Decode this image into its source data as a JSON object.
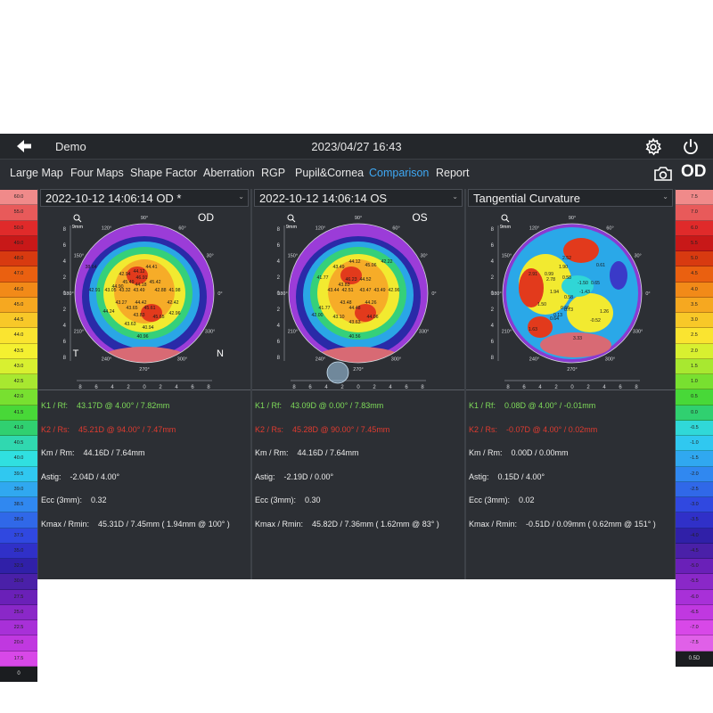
{
  "header": {
    "app_title": "Demo",
    "datetime": "2023/04/27 16:43",
    "eye": "OD"
  },
  "nav": [
    "Large Map",
    "Four Maps",
    "Shape Factor",
    "Aberration",
    "RGP",
    "Pupil&Cornea",
    "Comparison",
    "Report"
  ],
  "nav_active": "Comparison",
  "left_scale": [
    "60.0",
    "55.0",
    "50.0",
    "49.0",
    "48.0",
    "47.0",
    "46.0",
    "45.0",
    "44.5",
    "44.0",
    "43.5",
    "43.0",
    "42.5",
    "42.0",
    "41.5",
    "41.0",
    "40.5",
    "40.0",
    "39.5",
    "39.0",
    "38.5",
    "38.0",
    "37.5",
    "35.0",
    "32.5",
    "30.0",
    "27.5",
    "25.0",
    "22.5",
    "20.0",
    "17.5",
    "0"
  ],
  "right_scale": [
    "7.5",
    "7.0",
    "6.0",
    "5.5",
    "5.0",
    "4.5",
    "4.0",
    "3.5",
    "3.0",
    "2.5",
    "2.0",
    "1.5",
    "1.0",
    "0.5",
    "0.0",
    "-0.5",
    "-1.0",
    "-1.5",
    "-2.0",
    "-2.5",
    "-3.0",
    "-3.5",
    "-4.0",
    "-4.5",
    "-5.0",
    "-5.5",
    "-6.0",
    "-6.5",
    "-7.0",
    "-7.5",
    "0.5D"
  ],
  "scale_colors": {
    "left": [
      "#f08a8a",
      "#e85a5a",
      "#e02a2a",
      "#c81818",
      "#d83a10",
      "#ea6010",
      "#f28a18",
      "#f6a820",
      "#f8c828",
      "#fae430",
      "#f4f030",
      "#d8f030",
      "#a8e830",
      "#78e030",
      "#48d838",
      "#30d070",
      "#30d8b0",
      "#30e0e0",
      "#30c8f0",
      "#30a8f0",
      "#3088f0",
      "#3068e8",
      "#3048e0",
      "#3030c8",
      "#3020a8",
      "#4a20a8",
      "#6a20b8",
      "#8a28c8",
      "#a830d8",
      "#c038e0",
      "#d848e8",
      "#1b1d20"
    ],
    "right": [
      "#f08a8a",
      "#e85a5a",
      "#e02a2a",
      "#c81818",
      "#d83a10",
      "#ea6010",
      "#f28a18",
      "#f6a820",
      "#f8c828",
      "#fae430",
      "#d8f030",
      "#a8e830",
      "#78e030",
      "#48d838",
      "#30d070",
      "#30d8d8",
      "#30c8f0",
      "#30a8f0",
      "#3088f0",
      "#3068e8",
      "#3048e0",
      "#3030c8",
      "#3020a8",
      "#4a20a8",
      "#6a20b8",
      "#8a28c8",
      "#a830d8",
      "#c038e0",
      "#d848e8",
      "#e060e8",
      "#1b1d20"
    ]
  },
  "panels": [
    {
      "selector": "2022-10-12 14:06:14 OD *",
      "eye_label": "OD",
      "map_kind": "axial",
      "corner_left": "T",
      "corner_right": "N",
      "zoom": "9mm",
      "map_values": [
        "42.94",
        "44.12",
        "45.49",
        "44.41",
        "46.91",
        "45.42",
        "44.18",
        "44.90",
        "42.91",
        "43.05",
        "43.32",
        "43.49",
        "42.88",
        "41.98",
        "43.27",
        "44.42",
        "43.65",
        "42.42",
        "43.83",
        "45.61",
        "42.96",
        "45.65",
        "44.24",
        "43.63",
        "40.96",
        "40.94",
        "38.64"
      ],
      "info": {
        "k1_label": "K1 / Rf:",
        "k1": "43.17D @ 4.00° / 7.82mm",
        "k2_label": "K2 / Rs:",
        "k2": "45.21D @ 94.00° / 7.47mm",
        "km_label": "Km / Rm:",
        "km": "44.16D / 7.64mm",
        "astig_label": "Astig:",
        "astig": "-2.04D / 4.00°",
        "ecc_label": "Ecc (3mm):",
        "ecc": "0.32",
        "kmax_label": "Kmax / Rmin:",
        "kmax": "45.31D / 7.45mm ( 1.94mm @ 100° )"
      }
    },
    {
      "selector": "2022-10-12 14:06:14 OS",
      "eye_label": "OS",
      "map_kind": "axial",
      "corner_left": "",
      "corner_right": "",
      "zoom": "9mm",
      "map_values": [
        "44.12",
        "45.06",
        "43.49",
        "42.22",
        "41.77",
        "46.23",
        "44.52",
        "43.83",
        "43.47",
        "42.51",
        "43.44",
        "43.49",
        "42.96",
        "43.48",
        "44.26",
        "44.48",
        "43.10",
        "44.06",
        "43.63",
        "40.56",
        "41.77",
        "42.00"
      ],
      "info": {
        "k1_label": "K1 / Rf:",
        "k1": "43.09D @ 0.00° / 7.83mm",
        "k2_label": "K2 / Rs:",
        "k2": "45.28D @ 90.00° / 7.45mm",
        "km_label": "Km / Rm:",
        "km": "44.16D / 7.64mm",
        "astig_label": "Astig:",
        "astig": "-2.19D / 0.00°",
        "ecc_label": "Ecc (3mm):",
        "ecc": "0.30",
        "kmax_label": "Kmax / Rmin:",
        "kmax": "45.82D / 7.36mm ( 1.62mm @ 83° )"
      }
    },
    {
      "selector": "Tangential Curvature",
      "eye_label": "",
      "map_kind": "difference",
      "corner_left": "",
      "corner_right": "",
      "zoom": "9mm",
      "map_values": [
        "2.52",
        "0.99",
        "1.90",
        "0.61",
        "0.65",
        "2.78",
        "-1.50",
        "0.58",
        "2.91",
        "1.94",
        "0.58",
        "-1.43",
        "0.73",
        "1.50",
        "0.13",
        "1.26",
        "0.64",
        "0.66",
        "-0.52",
        "1.63",
        "3.33"
      ],
      "info": {
        "k1_label": "K1 / Rf:",
        "k1": "0.08D @ 4.00° / -0.01mm",
        "k2_label": "K2 / Rs:",
        "k2": "-0.07D @ 4.00° / 0.02mm",
        "km_label": "Km / Rm:",
        "km": "0.00D / 0.00mm",
        "astig_label": "Astig:",
        "astig": "0.15D / 4.00°",
        "ecc_label": "Ecc (3mm):",
        "ecc": "0.02",
        "kmax_label": "Kmax / Rmin:",
        "kmax": "-0.51D / 0.09mm ( 0.62mm @ 151° )"
      }
    }
  ],
  "angle_labels": [
    "90°",
    "60°",
    "30°",
    "0°",
    "330°",
    "300°",
    "270°",
    "240°",
    "210°",
    "180°",
    "150°",
    "120°"
  ],
  "axis_ticks": [
    "8",
    "6",
    "4",
    "2",
    "0",
    "2",
    "4",
    "6",
    "8"
  ]
}
